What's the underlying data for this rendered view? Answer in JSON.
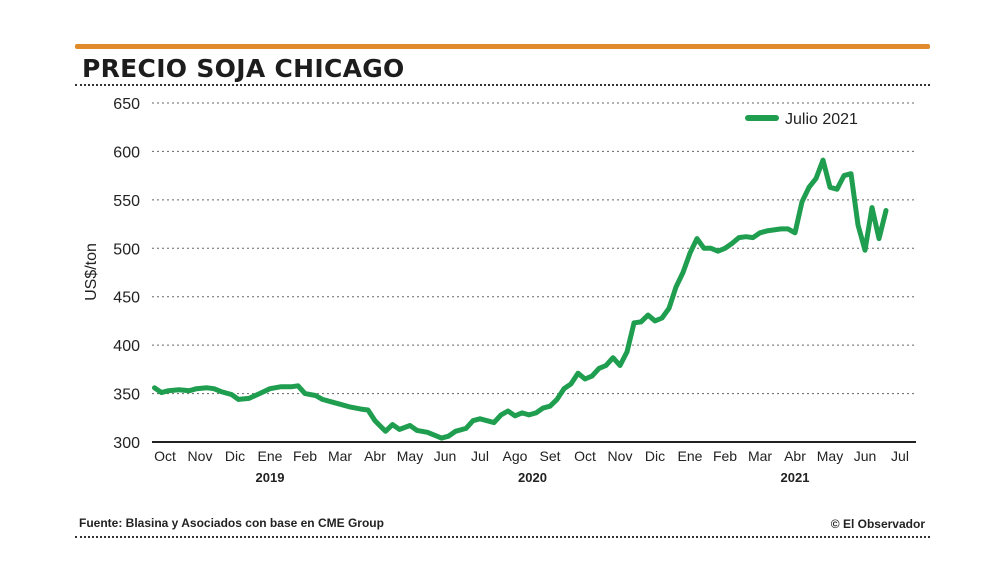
{
  "header": {
    "title": "PRECIO SOJA CHICAGO"
  },
  "footer": {
    "source": "Fuente: Blasina y Asociados con base en CME Group",
    "credit": "© El Observador"
  },
  "colors": {
    "accent_rule": "#e08a2c",
    "series": "#1f9e4f"
  },
  "chart_data": {
    "type": "line",
    "title": "PRECIO SOJA CHICAGO",
    "ylabel": "US$/ton",
    "xlabel": "",
    "ylim": [
      300,
      650
    ],
    "yticks": [
      300,
      350,
      400,
      450,
      500,
      550,
      600,
      650
    ],
    "grid": "horizontal dotted",
    "legend_position": "top-right",
    "month_labels": [
      "Oct",
      "Nov",
      "Dic",
      "Ene",
      "Feb",
      "Mar",
      "Abr",
      "May",
      "Jun",
      "Jul",
      "Ago",
      "Set",
      "Oct",
      "Nov",
      "Dic",
      "Ene",
      "Feb",
      "Mar",
      "Abr",
      "May",
      "Jun",
      "Jul"
    ],
    "year_labels": [
      {
        "label": "2019",
        "month_index": 3
      },
      {
        "label": "2020",
        "month_index": 10.5
      },
      {
        "label": "2021",
        "month_index": 18
      }
    ],
    "series": [
      {
        "name": "Julio 2021",
        "color": "#1f9e4f",
        "points": [
          [
            -0.3,
            356
          ],
          [
            -0.1,
            351
          ],
          [
            0.1,
            353
          ],
          [
            0.4,
            354
          ],
          [
            0.7,
            353
          ],
          [
            0.9,
            355
          ],
          [
            1.2,
            356
          ],
          [
            1.4,
            355
          ],
          [
            1.6,
            352
          ],
          [
            1.9,
            349
          ],
          [
            2.1,
            344
          ],
          [
            2.4,
            345
          ],
          [
            2.7,
            350
          ],
          [
            3.0,
            355
          ],
          [
            3.3,
            357
          ],
          [
            3.6,
            357
          ],
          [
            3.8,
            358
          ],
          [
            4.0,
            350
          ],
          [
            4.3,
            348
          ],
          [
            4.5,
            344
          ],
          [
            4.8,
            341
          ],
          [
            5.0,
            339
          ],
          [
            5.3,
            336
          ],
          [
            5.6,
            334
          ],
          [
            5.8,
            333
          ],
          [
            6.0,
            322
          ],
          [
            6.3,
            311
          ],
          [
            6.5,
            318
          ],
          [
            6.7,
            313
          ],
          [
            7.0,
            317
          ],
          [
            7.2,
            312
          ],
          [
            7.5,
            310
          ],
          [
            7.7,
            307
          ],
          [
            7.9,
            304
          ],
          [
            8.1,
            306
          ],
          [
            8.3,
            311
          ],
          [
            8.6,
            314
          ],
          [
            8.8,
            322
          ],
          [
            9.0,
            324
          ],
          [
            9.2,
            322
          ],
          [
            9.4,
            320
          ],
          [
            9.6,
            328
          ],
          [
            9.8,
            332
          ],
          [
            10.0,
            327
          ],
          [
            10.2,
            330
          ],
          [
            10.4,
            328
          ],
          [
            10.6,
            330
          ],
          [
            10.8,
            335
          ],
          [
            11.0,
            337
          ],
          [
            11.2,
            344
          ],
          [
            11.4,
            355
          ],
          [
            11.6,
            360
          ],
          [
            11.8,
            371
          ],
          [
            12.0,
            365
          ],
          [
            12.2,
            368
          ],
          [
            12.4,
            376
          ],
          [
            12.6,
            379
          ],
          [
            12.8,
            387
          ],
          [
            13.0,
            379
          ],
          [
            13.2,
            393
          ],
          [
            13.4,
            423
          ],
          [
            13.6,
            424
          ],
          [
            13.8,
            431
          ],
          [
            14.0,
            425
          ],
          [
            14.2,
            428
          ],
          [
            14.4,
            438
          ],
          [
            14.6,
            460
          ],
          [
            14.8,
            475
          ],
          [
            15.0,
            495
          ],
          [
            15.2,
            510
          ],
          [
            15.4,
            500
          ],
          [
            15.6,
            500
          ],
          [
            15.8,
            497
          ],
          [
            16.0,
            500
          ],
          [
            16.2,
            505
          ],
          [
            16.4,
            511
          ],
          [
            16.6,
            512
          ],
          [
            16.8,
            511
          ],
          [
            17.0,
            516
          ],
          [
            17.2,
            518
          ],
          [
            17.4,
            519
          ],
          [
            17.6,
            520
          ],
          [
            17.8,
            520
          ],
          [
            18.0,
            516
          ],
          [
            18.2,
            548
          ],
          [
            18.4,
            563
          ],
          [
            18.6,
            572
          ],
          [
            18.8,
            591
          ],
          [
            19.0,
            563
          ],
          [
            19.2,
            561
          ],
          [
            19.4,
            575
          ],
          [
            19.6,
            577
          ],
          [
            19.8,
            524
          ],
          [
            20.0,
            498
          ],
          [
            20.2,
            542
          ],
          [
            20.4,
            510
          ],
          [
            20.6,
            539
          ]
        ]
      }
    ]
  }
}
